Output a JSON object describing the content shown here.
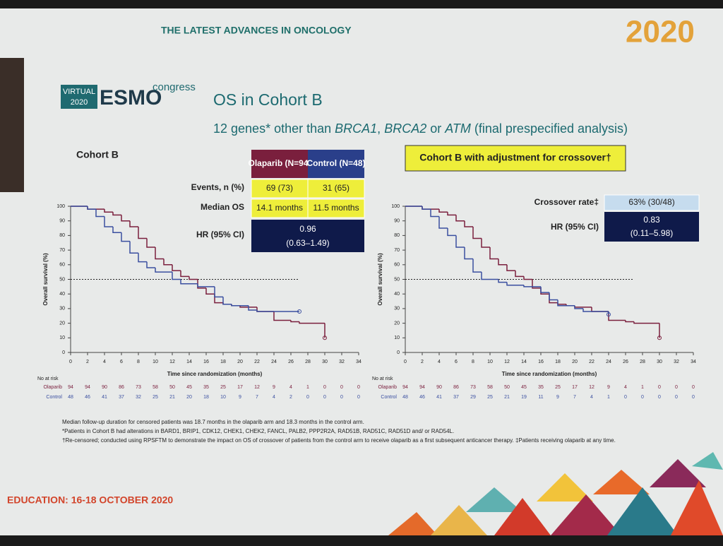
{
  "slide": {
    "header": "THE LATEST ADVANCES IN ONCOLOGY",
    "logo_year": "2020",
    "logo_virtual": "VIRTUAL",
    "logo_virtual_year": "2020",
    "logo_esmo": "ESMO",
    "logo_congress": "congress",
    "title": "OS in Cohort B",
    "subtitle_parts": [
      "12 genes* other than ",
      "BRCA1",
      ", ",
      "BRCA2",
      " or ",
      "ATM",
      " (final prespecified analysis)"
    ],
    "table1": {
      "header": [
        "Olaparib (N=94)",
        "Control (N=48)"
      ],
      "rows": [
        [
          "Events, n (%)",
          "69 (73)",
          "31 (65)"
        ],
        [
          "Median OS",
          "14.1 months",
          "11.5 months"
        ]
      ],
      "hr_label": "HR (95% CI)",
      "hr_value": "0.96",
      "hr_ci": "(0.63–1.49)"
    },
    "box2_title": "Cohort B with adjustment for crossover†",
    "table2": {
      "rows": [
        [
          "Crossover rate‡",
          "63% (30/48)"
        ]
      ],
      "hr_label": "HR (95% CI)",
      "hr_value": "0.83",
      "hr_ci": "(0.11–5.98)"
    },
    "footnotes": [
      "Median follow-up duration for censored patients was 18.7 months in the olaparib arm and 18.3 months in the control arm.",
      "*Patients in Cohort B had alterations in BARD1, BRIP1, CDK12, CHEK1, CHEK2, FANCL, PALB2, PPP2R2A, RAD51B, RAD51C, RAD51D and/ or RAD54L.",
      "†Re-censored; conducted using RPSFTM to demonstrate the impact on OS of crossover of patients from the control arm to receive olaparib as a first subsequent anticancer therapy. ‡Patients receiving olaparib at any time."
    ],
    "footer": "EDUCATION: 16-18 OCTOBER 2020"
  },
  "chart_data": [
    {
      "type": "step",
      "title": "Cohort B",
      "y_label": "Overall survival (%)",
      "x_label": "Time since randomization (months)",
      "xlim": [
        0,
        34
      ],
      "xticks": [
        0,
        2,
        4,
        6,
        8,
        10,
        12,
        14,
        16,
        18,
        20,
        22,
        24,
        26,
        28,
        30,
        32,
        34
      ],
      "ylim": [
        0,
        100
      ],
      "yticks": [
        0,
        10,
        20,
        30,
        40,
        50,
        60,
        70,
        80,
        90,
        100
      ],
      "reference_line": 50,
      "at_risk_label": "No at risk",
      "series": [
        {
          "name": "Olaparib",
          "color": "#7a1f3d",
          "x": [
            0,
            2,
            4,
            5,
            6,
            7,
            8,
            9,
            10,
            11,
            12,
            13,
            14,
            15,
            16,
            17,
            18,
            19,
            20,
            22,
            24,
            26,
            27,
            30
          ],
          "values": [
            100,
            98,
            96,
            94,
            90,
            86,
            78,
            72,
            64,
            60,
            56,
            52,
            50,
            44,
            40,
            34,
            33,
            32,
            31,
            28,
            22,
            21,
            20,
            10
          ],
          "at_risk": [
            94,
            94,
            90,
            86,
            73,
            58,
            50,
            45,
            35,
            25,
            17,
            12,
            9,
            4,
            1,
            0,
            0,
            0
          ]
        },
        {
          "name": "Control",
          "color": "#3a4fa0",
          "x": [
            0,
            2,
            3,
            4,
            5,
            6,
            7,
            8,
            9,
            10,
            12,
            13,
            15,
            17,
            18,
            19,
            21,
            22,
            27
          ],
          "values": [
            100,
            98,
            93,
            86,
            82,
            76,
            68,
            62,
            58,
            55,
            50,
            47,
            45,
            38,
            33,
            32,
            29,
            28,
            28
          ],
          "at_risk": [
            48,
            46,
            41,
            37,
            32,
            25,
            21,
            20,
            18,
            10,
            9,
            7,
            4,
            2,
            0,
            0,
            0,
            0
          ]
        }
      ]
    },
    {
      "type": "step",
      "y_label": "Overall survival (%)",
      "x_label": "Time since randomization (months)",
      "xlim": [
        0,
        34
      ],
      "xticks": [
        0,
        2,
        4,
        6,
        8,
        10,
        12,
        14,
        16,
        18,
        20,
        22,
        24,
        26,
        28,
        30,
        32,
        34
      ],
      "ylim": [
        0,
        100
      ],
      "yticks": [
        0,
        10,
        20,
        30,
        40,
        50,
        60,
        70,
        80,
        90,
        100
      ],
      "reference_line": 50,
      "at_risk_label": "No at risk",
      "series": [
        {
          "name": "Olaparib",
          "color": "#7a1f3d",
          "x": [
            0,
            2,
            4,
            5,
            6,
            7,
            8,
            9,
            10,
            11,
            12,
            13,
            14,
            15,
            16,
            17,
            18,
            19,
            20,
            22,
            24,
            26,
            27,
            30
          ],
          "values": [
            100,
            98,
            96,
            94,
            90,
            86,
            78,
            72,
            64,
            60,
            56,
            52,
            50,
            44,
            40,
            34,
            33,
            32,
            31,
            28,
            22,
            21,
            20,
            10
          ],
          "at_risk": [
            94,
            94,
            90,
            86,
            73,
            58,
            50,
            45,
            35,
            25,
            17,
            12,
            9,
            4,
            1,
            0,
            0,
            0
          ]
        },
        {
          "name": "Control",
          "color": "#3a4fa0",
          "x": [
            0,
            2,
            3,
            4,
            5,
            6,
            7,
            8,
            9,
            11,
            12,
            14,
            16,
            17,
            18,
            20,
            21,
            24
          ],
          "values": [
            100,
            98,
            93,
            85,
            80,
            72,
            64,
            55,
            50,
            48,
            46,
            45,
            41,
            36,
            32,
            30,
            28,
            26
          ],
          "at_risk": [
            48,
            46,
            41,
            37,
            29,
            25,
            21,
            19,
            11,
            9,
            7,
            4,
            1,
            0,
            0,
            0,
            0,
            0
          ]
        }
      ]
    }
  ]
}
